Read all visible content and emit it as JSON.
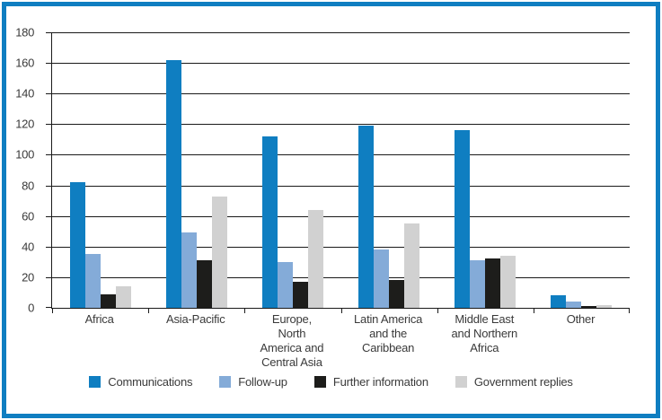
{
  "chart_data": {
    "type": "bar",
    "title": "",
    "xlabel": "",
    "ylabel": "",
    "grid": true,
    "legend_position": "bottom",
    "y_axis": {
      "min": 0,
      "max": 180,
      "step": 20,
      "tick_labels": [
        "0",
        "20",
        "40",
        "60",
        "80",
        "100",
        "120",
        "140",
        "160",
        "180"
      ]
    },
    "categories": [
      "Africa",
      "Asia-Pacific",
      "Europe, North America and Central Asia",
      "Latin America and the Caribbean",
      "Middle East and Northern Africa",
      "Other"
    ],
    "category_label_lines": [
      [
        "Africa"
      ],
      [
        "Asia-Pacific"
      ],
      [
        "Europe,",
        "North",
        "America and",
        "Central Asia"
      ],
      [
        "Latin America",
        "and the",
        "Caribbean"
      ],
      [
        "Middle East",
        "and Northern",
        "Africa"
      ],
      [
        "Other"
      ]
    ],
    "series": [
      {
        "name": "Communications",
        "color": "#0f7ec1",
        "values": [
          82,
          162,
          112,
          119,
          116,
          8
        ]
      },
      {
        "name": "Follow-up",
        "color": "#84abd8",
        "values": [
          35,
          49,
          30,
          38,
          31,
          4
        ]
      },
      {
        "name": "Further information",
        "color": "#1d1d1b",
        "values": [
          9,
          31,
          17,
          18,
          32,
          1
        ]
      },
      {
        "name": "Government replies",
        "color": "#d1d1d1",
        "values": [
          14,
          73,
          64,
          55,
          34,
          2
        ]
      }
    ]
  },
  "style": {
    "frame_border_color": "#0f7ec1",
    "grid_color": "#1a1a1a",
    "text_color": "#3a3a3a",
    "background": "#ffffff"
  }
}
